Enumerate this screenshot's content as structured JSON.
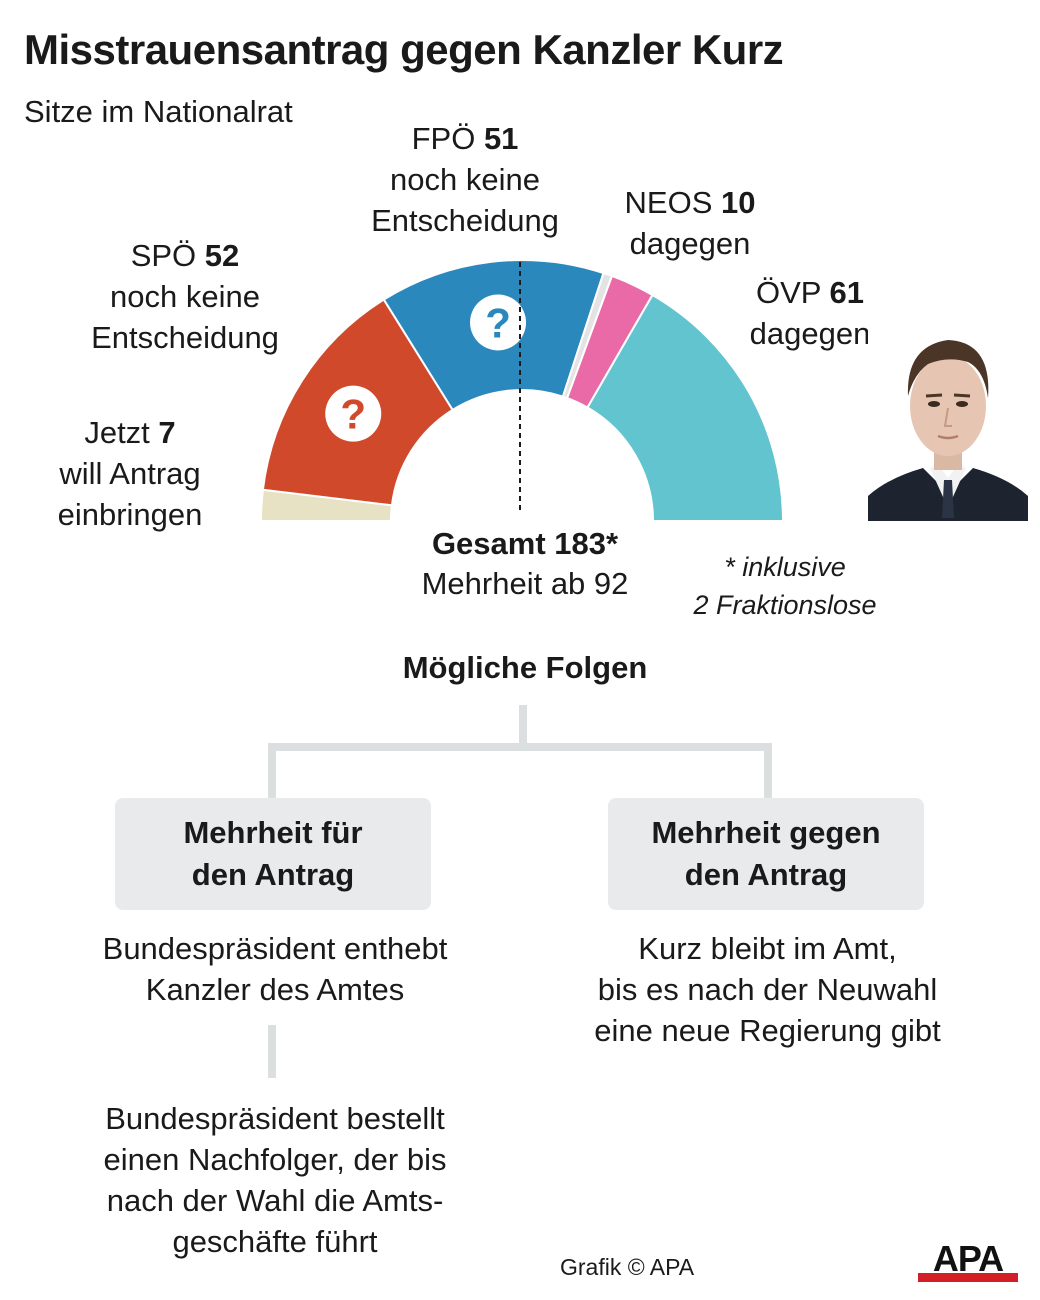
{
  "header": {
    "title": "Misstrauensantrag gegen Kanzler Kurz",
    "subtitle": "Sitze im Nationalrat"
  },
  "chart_data": {
    "type": "pie",
    "subtype": "half-donut-parliament",
    "total": 183,
    "majority": 92,
    "slices": [
      {
        "party": "Jetzt",
        "seats": 7,
        "status": "will Antrag einbringen",
        "color": "#e8e2c4",
        "mark": ""
      },
      {
        "party": "SPÖ",
        "seats": 52,
        "status": "noch keine Entscheidung",
        "color": "#d0492b",
        "mark": "?"
      },
      {
        "party": "FPÖ",
        "seats": 51,
        "status": "noch keine Entscheidung",
        "color": "#2a88bd",
        "mark": "?"
      },
      {
        "party": "Fraktionslose",
        "seats": 2,
        "status": "",
        "color": "#e3e3e3",
        "mark": ""
      },
      {
        "party": "NEOS",
        "seats": 10,
        "status": "dagegen",
        "color": "#e96aa6",
        "mark": ""
      },
      {
        "party": "ÖVP",
        "seats": 61,
        "status": "dagegen",
        "color": "#62c4cf",
        "mark": ""
      }
    ],
    "total_line1": "Gesamt 183*",
    "total_line2": "Mehrheit ab 92",
    "footnote_line1": "* inklusive",
    "footnote_line2": "2 Fraktionslose"
  },
  "consequences": {
    "title": "Mögliche Folgen",
    "left": {
      "box_line1": "Mehrheit für",
      "box_line2": "den Antrag",
      "text1": "Bundespräsident enthebt\nKanzler des Amtes",
      "text2": "Bundespräsident bestellt\neinen Nachfolger, der bis\nnach der Wahl die Amts-\ngeschäfte führt"
    },
    "right": {
      "box_line1": "Mehrheit gegen",
      "box_line2": "den Antrag",
      "text1": "Kurz bleibt im Amt,\nbis es nach der Neuwahl\neine neue Regierung gibt"
    }
  },
  "footer": {
    "credit": "Grafik © APA",
    "logo_text": "APA"
  },
  "colors": {
    "logo_red": "#d11f25",
    "connector": "#dcdfe0",
    "box_bg": "#e8eaeb"
  }
}
